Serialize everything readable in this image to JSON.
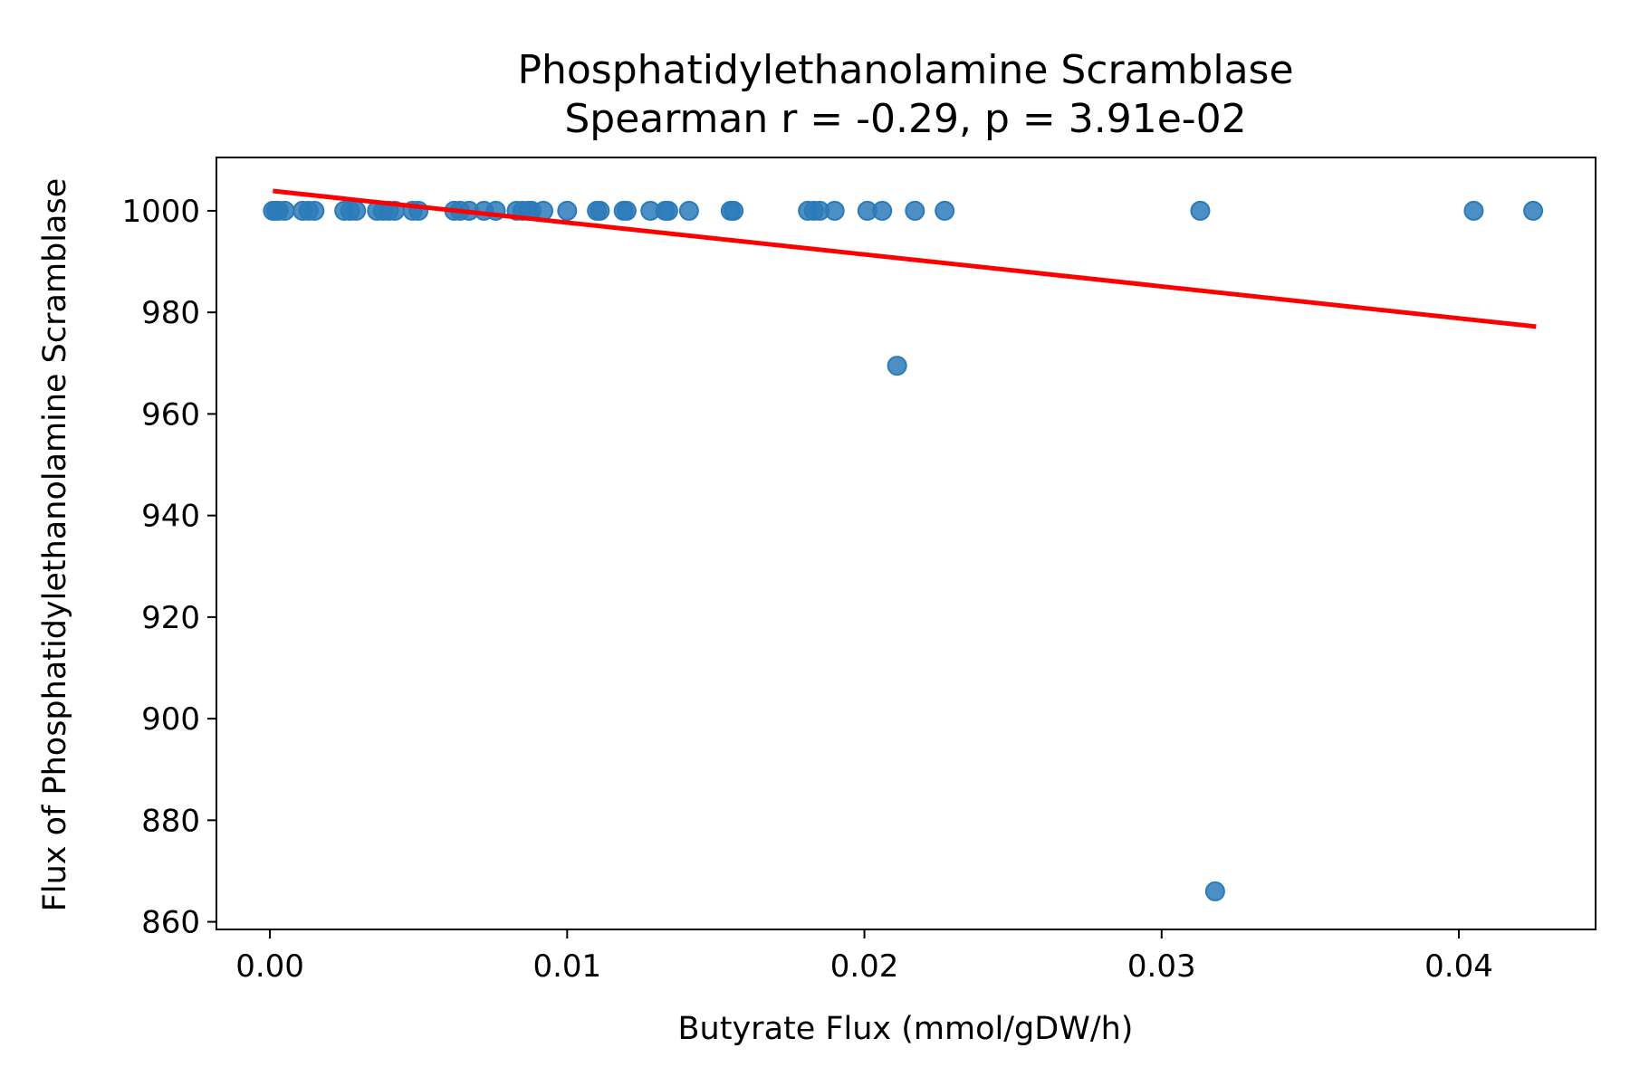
{
  "chart_data": {
    "type": "scatter",
    "title": "Phosphatidylethanolamine Scramblase",
    "subtitle": "Spearman r = -0.29, p = 3.91e-02",
    "xlabel": "Butyrate Flux (mmol/gDW/h)",
    "ylabel": "Flux of Phosphatidylethanolamine Scramblase",
    "xlim": [
      -0.0018,
      0.0446
    ],
    "ylim": [
      858.5,
      1010.5
    ],
    "xticks": [
      0.0,
      0.01,
      0.02,
      0.03,
      0.04
    ],
    "xtick_labels": [
      "0.00",
      "0.01",
      "0.02",
      "0.03",
      "0.04"
    ],
    "yticks": [
      860,
      880,
      900,
      920,
      940,
      960,
      980,
      1000
    ],
    "ytick_labels": [
      "860",
      "880",
      "900",
      "920",
      "940",
      "960",
      "980",
      "1000"
    ],
    "grid": false,
    "point_color": "#2b7bba",
    "line_color": "#ff0000",
    "points": [
      {
        "x": 0.0001,
        "y": 1000
      },
      {
        "x": 0.0002,
        "y": 1000
      },
      {
        "x": 0.0003,
        "y": 1000
      },
      {
        "x": 0.0005,
        "y": 1000
      },
      {
        "x": 0.0011,
        "y": 1000
      },
      {
        "x": 0.0013,
        "y": 1000
      },
      {
        "x": 0.0015,
        "y": 1000
      },
      {
        "x": 0.0025,
        "y": 1000
      },
      {
        "x": 0.0027,
        "y": 1000
      },
      {
        "x": 0.0029,
        "y": 1000
      },
      {
        "x": 0.0036,
        "y": 1000
      },
      {
        "x": 0.0038,
        "y": 1000
      },
      {
        "x": 0.004,
        "y": 1000
      },
      {
        "x": 0.0042,
        "y": 1000
      },
      {
        "x": 0.0048,
        "y": 1000
      },
      {
        "x": 0.005,
        "y": 1000
      },
      {
        "x": 0.0062,
        "y": 1000
      },
      {
        "x": 0.0064,
        "y": 1000
      },
      {
        "x": 0.0067,
        "y": 1000
      },
      {
        "x": 0.0072,
        "y": 1000
      },
      {
        "x": 0.0076,
        "y": 1000
      },
      {
        "x": 0.0083,
        "y": 1000
      },
      {
        "x": 0.0085,
        "y": 1000
      },
      {
        "x": 0.0087,
        "y": 1000
      },
      {
        "x": 0.0088,
        "y": 1000
      },
      {
        "x": 0.0092,
        "y": 1000
      },
      {
        "x": 0.01,
        "y": 1000
      },
      {
        "x": 0.011,
        "y": 1000
      },
      {
        "x": 0.0111,
        "y": 1000
      },
      {
        "x": 0.0119,
        "y": 1000
      },
      {
        "x": 0.012,
        "y": 1000
      },
      {
        "x": 0.0128,
        "y": 1000
      },
      {
        "x": 0.0133,
        "y": 1000
      },
      {
        "x": 0.0134,
        "y": 1000
      },
      {
        "x": 0.0141,
        "y": 1000
      },
      {
        "x": 0.0155,
        "y": 1000
      },
      {
        "x": 0.0156,
        "y": 1000
      },
      {
        "x": 0.0181,
        "y": 1000
      },
      {
        "x": 0.0183,
        "y": 1000
      },
      {
        "x": 0.0185,
        "y": 1000
      },
      {
        "x": 0.019,
        "y": 1000
      },
      {
        "x": 0.0201,
        "y": 1000
      },
      {
        "x": 0.0206,
        "y": 1000
      },
      {
        "x": 0.0217,
        "y": 1000
      },
      {
        "x": 0.0227,
        "y": 1000
      },
      {
        "x": 0.0313,
        "y": 1000
      },
      {
        "x": 0.0405,
        "y": 1000
      },
      {
        "x": 0.0425,
        "y": 1000
      },
      {
        "x": 0.0211,
        "y": 969.5
      },
      {
        "x": 0.0318,
        "y": 866
      }
    ],
    "regression_line": {
      "x": [
        0.0001,
        0.0426
      ],
      "y": [
        1003.9,
        977.2
      ]
    }
  }
}
